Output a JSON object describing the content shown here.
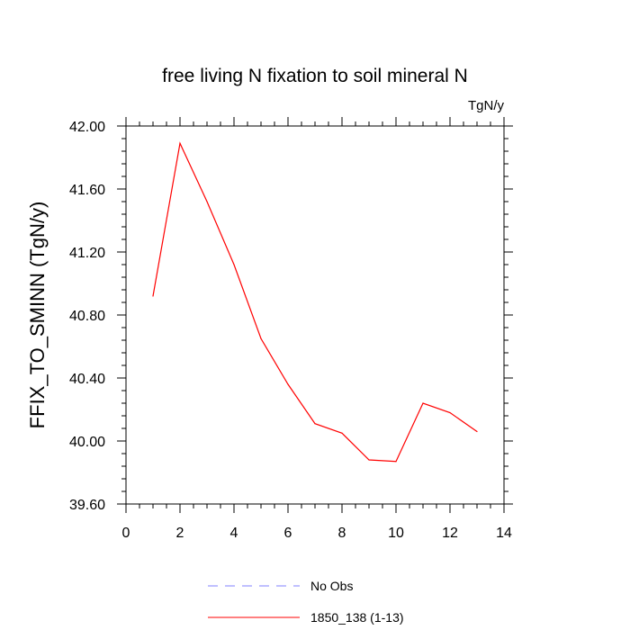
{
  "chart_data": {
    "type": "line",
    "title": "free living N fixation to soil mineral N",
    "units_label": "TgN/y",
    "ylabel": "FFIX_TO_SMINN  (TgN/y)",
    "xlabel": "",
    "xlim": [
      0,
      14
    ],
    "ylim": [
      39.6,
      42.0
    ],
    "x_ticks": [
      0,
      2,
      4,
      6,
      8,
      10,
      12,
      14
    ],
    "x_tick_labels": [
      "0",
      "2",
      "4",
      "6",
      "8",
      "10",
      "12",
      "14"
    ],
    "y_ticks": [
      39.6,
      40.0,
      40.4,
      40.8,
      41.2,
      41.6,
      42.0
    ],
    "y_tick_labels": [
      "39.60",
      "40.00",
      "40.40",
      "40.80",
      "41.20",
      "41.60",
      "42.00"
    ],
    "grid": false,
    "legend_position": "bottom",
    "series": [
      {
        "name": "1850_138 (1-13)",
        "color": "#ff0000",
        "dash": "solid",
        "x": [
          1,
          2,
          3,
          4,
          5,
          6,
          7,
          8,
          9,
          10,
          11,
          12,
          13
        ],
        "y": [
          40.92,
          41.89,
          41.52,
          41.12,
          40.65,
          40.36,
          40.11,
          40.05,
          39.88,
          39.87,
          40.24,
          40.18,
          40.06
        ]
      }
    ],
    "legend": [
      {
        "label": "No Obs",
        "color": "#8080ff",
        "dash": "dashed"
      },
      {
        "label": "1850_138 (1-13)",
        "color": "#ff0000",
        "dash": "solid"
      }
    ]
  }
}
